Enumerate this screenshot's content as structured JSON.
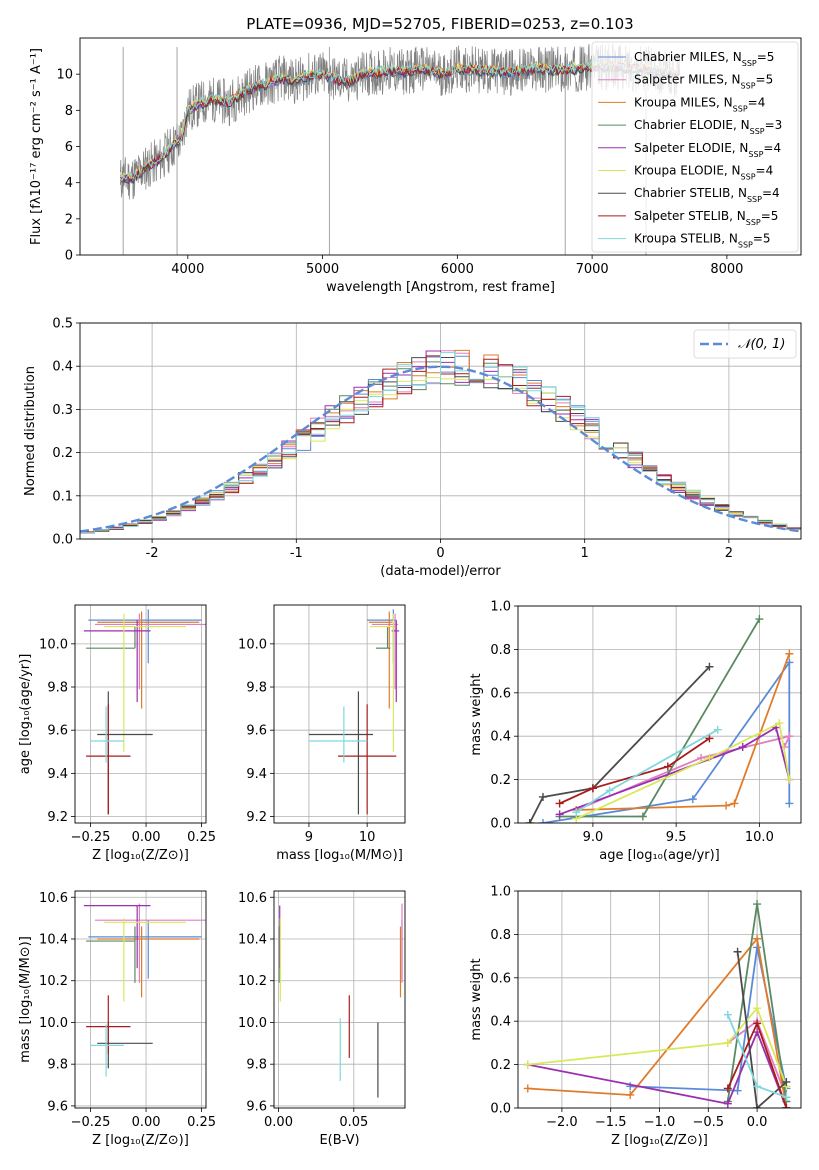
{
  "page": {
    "title": "PLATE=0936, MJD=52705, FIBERID=0253, z=0.103"
  },
  "colors": {
    "Chabrier MILES": "#5b8bd8",
    "Salpeter MILES": "#e07fc0",
    "Kroupa MILES": "#e07b2a",
    "Chabrier ELODIE": "#5a8a62",
    "Salpeter ELODIE": "#9b2fb0",
    "Kroupa ELODIE": "#d8e85a",
    "Chabrier STELIB": "#4a4a4a",
    "Salpeter STELIB": "#aa1c1c",
    "Kroupa STELIB": "#7fd8dc",
    "data": "#808080",
    "normal": "#5b8bd8"
  },
  "chart_data": [
    {
      "id": "spectrum",
      "type": "line",
      "title": "PLATE=0936, MJD=52705, FIBERID=0253, z=0.103",
      "xlabel": "wavelength [Angstrom, rest frame]",
      "ylabel": "Flux [fλ10⁻¹⁷ erg cm⁻² s⁻¹ A⁻¹]",
      "xlim": [
        3200,
        8550
      ],
      "ylim": [
        0,
        12
      ],
      "xticks": [
        4000,
        5000,
        6000,
        7000,
        8000
      ],
      "yticks": [
        0,
        2,
        4,
        6,
        8,
        10
      ],
      "legend_position": "upper right",
      "legend": [
        {
          "name": "Chabrier MILES, N_SSP=5",
          "color": "#5b8bd8"
        },
        {
          "name": "Salpeter MILES, N_SSP=5",
          "color": "#e07fc0"
        },
        {
          "name": "Kroupa MILES, N_SSP=4",
          "color": "#e07b2a"
        },
        {
          "name": "Chabrier ELODIE, N_SSP=3",
          "color": "#5a8a62"
        },
        {
          "name": "Salpeter ELODIE, N_SSP=4",
          "color": "#9b2fb0"
        },
        {
          "name": "Kroupa ELODIE, N_SSP=4",
          "color": "#d8e85a"
        },
        {
          "name": "Chabrier STELIB, N_SSP=4",
          "color": "#4a4a4a"
        },
        {
          "name": "Salpeter STELIB, N_SSP=5",
          "color": "#aa1c1c"
        },
        {
          "name": "Kroupa STELIB, N_SSP=5",
          "color": "#7fd8dc"
        }
      ],
      "continuum": [
        [
          3500,
          4.2
        ],
        [
          3600,
          4.3
        ],
        [
          3700,
          4.9
        ],
        [
          3800,
          5.3
        ],
        [
          3900,
          6.1
        ],
        [
          3950,
          6.4
        ],
        [
          4000,
          8.0
        ],
        [
          4100,
          8.4
        ],
        [
          4200,
          8.6
        ],
        [
          4300,
          8.4
        ],
        [
          4400,
          8.9
        ],
        [
          4500,
          9.3
        ],
        [
          4600,
          9.5
        ],
        [
          4700,
          9.8
        ],
        [
          4800,
          9.6
        ],
        [
          4900,
          9.9
        ],
        [
          5000,
          10.0
        ],
        [
          5100,
          9.7
        ],
        [
          5200,
          9.6
        ],
        [
          5300,
          10.0
        ],
        [
          5400,
          10.1
        ],
        [
          5500,
          10.2
        ],
        [
          5600,
          10.1
        ],
        [
          5700,
          10.3
        ],
        [
          5800,
          10.2
        ],
        [
          5900,
          10.0
        ],
        [
          6000,
          10.3
        ],
        [
          6200,
          10.2
        ],
        [
          6400,
          10.1
        ],
        [
          6600,
          10.3
        ],
        [
          6800,
          10.2
        ],
        [
          7000,
          10.4
        ],
        [
          7200,
          10.4
        ],
        [
          7400,
          10.3
        ],
        [
          7600,
          10.0
        ]
      ],
      "data_extent": [
        3500,
        7650
      ],
      "bad_pixel_spikes": [
        3520,
        3920,
        5050,
        6800,
        7400
      ]
    },
    {
      "id": "residuals",
      "type": "step",
      "xlabel": "(data-model)/error",
      "ylabel": "Normed distribution",
      "xlim": [
        -2.5,
        2.5
      ],
      "ylim": [
        0,
        0.5
      ],
      "xticks": [
        -2,
        -1,
        0,
        1,
        2
      ],
      "yticks": [
        0.0,
        0.1,
        0.2,
        0.3,
        0.4,
        0.5
      ],
      "legend": [
        {
          "name": "𝒩(0, 1)",
          "color": "#5b8bd8",
          "style": "dashed"
        }
      ],
      "bin_width": 0.1
    },
    {
      "id": "age-vs-Z",
      "type": "errorbar",
      "xlabel": "Z [log₁₀(Z/Z⊙)]",
      "ylabel": "age  [log₁₀(age/yr)]",
      "xlim": [
        -0.32,
        0.27
      ],
      "ylim": [
        9.17,
        10.18
      ],
      "xticks": [
        -0.25,
        0.0,
        0.25
      ],
      "yticks": [
        9.2,
        9.4,
        9.6,
        9.8,
        10.0
      ],
      "points": [
        {
          "model": "Chabrier MILES",
          "x": 0.01,
          "y": 10.11,
          "xerr": [
            0.27,
            0.24
          ],
          "yerr": [
            0.2,
            0.05
          ]
        },
        {
          "model": "Salpeter MILES",
          "x": -0.03,
          "y": 10.09,
          "xerr": [
            0.2,
            0.3
          ],
          "yerr": [
            0.3,
            0.05
          ]
        },
        {
          "model": "Kroupa MILES",
          "x": -0.02,
          "y": 10.1,
          "xerr": [
            0.2,
            0.26
          ],
          "yerr": [
            0.4,
            0.05
          ]
        },
        {
          "model": "Chabrier ELODIE",
          "x": -0.05,
          "y": 9.98,
          "xerr": [
            0.22,
            0.0
          ],
          "yerr": [
            0.0,
            0.1
          ]
        },
        {
          "model": "Salpeter ELODIE",
          "x": -0.04,
          "y": 10.06,
          "xerr": [
            0.24,
            0.06
          ],
          "yerr": [
            0.33,
            0.05
          ]
        },
        {
          "model": "Kroupa ELODIE",
          "x": -0.1,
          "y": 10.08,
          "xerr": [
            0.09,
            0.28
          ],
          "yerr": [
            0.58,
            0.06
          ]
        },
        {
          "model": "Chabrier STELIB",
          "x": -0.17,
          "y": 9.58,
          "xerr": [
            0.05,
            0.2
          ],
          "yerr": [
            0.37,
            0.2
          ]
        },
        {
          "model": "Salpeter STELIB",
          "x": -0.17,
          "y": 9.48,
          "xerr": [
            0.1,
            0.1
          ],
          "yerr": [
            0.27,
            0.24
          ]
        },
        {
          "model": "Kroupa STELIB",
          "x": -0.18,
          "y": 9.55,
          "xerr": [
            0.07,
            0.08
          ],
          "yerr": [
            0.1,
            0.16
          ]
        }
      ]
    },
    {
      "id": "age-vs-mass",
      "type": "errorbar",
      "xlabel": "mass [log₁₀(M/M⊙)]",
      "ylabel": "",
      "xlim": [
        8.4,
        10.65
      ],
      "ylim": [
        9.17,
        10.18
      ],
      "xticks": [
        9,
        10
      ],
      "yticks": [
        9.2,
        9.4,
        9.6,
        9.8,
        10.0
      ],
      "points": [
        {
          "model": "Chabrier MILES",
          "x": 10.45,
          "y": 10.11,
          "xerr": [
            0.45,
            0.05
          ],
          "yerr": [
            0.2,
            0.05
          ]
        },
        {
          "model": "Salpeter MILES",
          "x": 10.48,
          "y": 10.09,
          "xerr": [
            0.4,
            0.05
          ],
          "yerr": [
            0.3,
            0.05
          ]
        },
        {
          "model": "Kroupa MILES",
          "x": 10.38,
          "y": 10.1,
          "xerr": [
            0.35,
            0.05
          ],
          "yerr": [
            0.4,
            0.05
          ]
        },
        {
          "model": "Chabrier ELODIE",
          "x": 10.35,
          "y": 9.98,
          "xerr": [
            0.2,
            0.05
          ],
          "yerr": [
            0.0,
            0.1
          ]
        },
        {
          "model": "Salpeter ELODIE",
          "x": 10.5,
          "y": 10.06,
          "xerr": [
            0.08,
            0.05
          ],
          "yerr": [
            0.33,
            0.05
          ]
        },
        {
          "model": "Kroupa ELODIE",
          "x": 10.45,
          "y": 10.08,
          "xerr": [
            0.4,
            0.02
          ],
          "yerr": [
            0.58,
            0.06
          ]
        },
        {
          "model": "Chabrier STELIB",
          "x": 9.85,
          "y": 9.58,
          "xerr": [
            0.85,
            0.25
          ],
          "yerr": [
            0.37,
            0.2
          ]
        },
        {
          "model": "Salpeter STELIB",
          "x": 10.0,
          "y": 9.48,
          "xerr": [
            0.5,
            0.5
          ],
          "yerr": [
            0.27,
            0.24
          ]
        },
        {
          "model": "Kroupa STELIB",
          "x": 9.6,
          "y": 9.55,
          "xerr": [
            0.6,
            0.4
          ],
          "yerr": [
            0.1,
            0.16
          ]
        }
      ]
    },
    {
      "id": "weight-vs-age",
      "type": "line",
      "xlabel": "age  [log₁₀(age/yr)]",
      "ylabel": "mass weight",
      "xlim": [
        8.55,
        10.25
      ],
      "ylim": [
        0,
        1
      ],
      "xticks": [
        9.0,
        9.5,
        10.0
      ],
      "yticks": [
        0.0,
        0.2,
        0.4,
        0.6,
        0.8,
        1.0
      ],
      "series": [
        {
          "model": "Chabrier MILES",
          "x": [
            8.7,
            9.6,
            10.18,
            10.18
          ],
          "y": [
            0.0,
            0.11,
            0.74,
            0.09
          ]
        },
        {
          "model": "Salpeter MILES",
          "x": [
            8.9,
            9.65,
            10.18,
            10.15
          ],
          "y": [
            0.06,
            0.3,
            0.4,
            0.35
          ]
        },
        {
          "model": "Kroupa MILES",
          "x": [
            8.9,
            9.8,
            9.85,
            10.18
          ],
          "y": [
            0.06,
            0.08,
            0.09,
            0.78
          ]
        },
        {
          "model": "Chabrier ELODIE",
          "x": [
            8.8,
            9.3,
            10.0
          ],
          "y": [
            0.03,
            0.03,
            0.94
          ]
        },
        {
          "model": "Salpeter ELODIE",
          "x": [
            8.8,
            9.9,
            10.1,
            10.18
          ],
          "y": [
            0.04,
            0.35,
            0.44,
            0.2
          ]
        },
        {
          "model": "Kroupa ELODIE",
          "x": [
            8.9,
            9.7,
            10.12,
            10.18
          ],
          "y": [
            0.02,
            0.3,
            0.46,
            0.2
          ]
        },
        {
          "model": "Chabrier STELIB",
          "x": [
            8.62,
            8.7,
            9.0,
            9.7
          ],
          "y": [
            0.0,
            0.12,
            0.16,
            0.72
          ]
        },
        {
          "model": "Salpeter STELIB",
          "x": [
            8.8,
            9.0,
            9.45,
            9.7
          ],
          "y": [
            0.09,
            0.16,
            0.26,
            0.39
          ]
        },
        {
          "model": "Kroupa STELIB",
          "x": [
            8.9,
            9.1,
            9.75
          ],
          "y": [
            0.05,
            0.15,
            0.43
          ]
        }
      ]
    },
    {
      "id": "mass-vs-Z",
      "type": "errorbar",
      "xlabel": "Z [log₁₀(Z/Z⊙)]",
      "ylabel": "mass [log₁₀(M/M⊙)]",
      "xlim": [
        -0.32,
        0.27
      ],
      "ylim": [
        9.59,
        10.63
      ],
      "xticks": [
        -0.25,
        0.0,
        0.25
      ],
      "yticks": [
        9.6,
        9.8,
        10.0,
        10.2,
        10.4,
        10.6
      ],
      "points": [
        {
          "model": "Chabrier MILES",
          "x": 0.01,
          "y": 10.41,
          "xerr": [
            0.27,
            0.24
          ],
          "yerr": [
            0.2,
            0.08
          ]
        },
        {
          "model": "Salpeter MILES",
          "x": -0.03,
          "y": 10.49,
          "xerr": [
            0.2,
            0.3
          ],
          "yerr": [
            0.3,
            0.08
          ]
        },
        {
          "model": "Kroupa MILES",
          "x": -0.02,
          "y": 10.4,
          "xerr": [
            0.2,
            0.26
          ],
          "yerr": [
            0.28,
            0.06
          ]
        },
        {
          "model": "Chabrier ELODIE",
          "x": -0.05,
          "y": 10.39,
          "xerr": [
            0.22,
            0.0
          ],
          "yerr": [
            0.2,
            0.07
          ]
        },
        {
          "model": "Salpeter ELODIE",
          "x": -0.04,
          "y": 10.56,
          "xerr": [
            0.24,
            0.06
          ],
          "yerr": [
            0.3,
            0.0
          ]
        },
        {
          "model": "Kroupa ELODIE",
          "x": -0.1,
          "y": 10.48,
          "xerr": [
            0.09,
            0.28
          ],
          "yerr": [
            0.38,
            0.02
          ]
        },
        {
          "model": "Chabrier STELIB",
          "x": -0.17,
          "y": 9.9,
          "xerr": [
            0.05,
            0.2
          ],
          "yerr": [
            0.12,
            0.1
          ]
        },
        {
          "model": "Salpeter STELIB",
          "x": -0.17,
          "y": 9.98,
          "xerr": [
            0.1,
            0.1
          ],
          "yerr": [
            0.13,
            0.15
          ]
        },
        {
          "model": "Kroupa STELIB",
          "x": -0.18,
          "y": 9.89,
          "xerr": [
            0.07,
            0.08
          ],
          "yerr": [
            0.15,
            0.1
          ]
        }
      ]
    },
    {
      "id": "mass-vs-EBV",
      "type": "errorbar",
      "xlabel": "E(B-V)",
      "ylabel": "",
      "xlim": [
        -0.003,
        0.084
      ],
      "ylim": [
        9.59,
        10.63
      ],
      "xticks": [
        0.0,
        0.05
      ],
      "yticks": [
        9.6,
        9.8,
        10.0,
        10.2,
        10.4,
        10.6
      ],
      "points": [
        {
          "model": "Chabrier MILES",
          "x": 0.082,
          "y": 10.41,
          "xerr": [
            0,
            0
          ],
          "yerr": [
            0.2,
            0.08
          ]
        },
        {
          "model": "Salpeter MILES",
          "x": 0.082,
          "y": 10.49,
          "xerr": [
            0,
            0
          ],
          "yerr": [
            0.3,
            0.08
          ]
        },
        {
          "model": "Kroupa MILES",
          "x": 0.081,
          "y": 10.4,
          "xerr": [
            0,
            0
          ],
          "yerr": [
            0.28,
            0.06
          ]
        },
        {
          "model": "Chabrier ELODIE",
          "x": 0.0005,
          "y": 10.39,
          "xerr": [
            0,
            0
          ],
          "yerr": [
            0.2,
            0.07
          ]
        },
        {
          "model": "Salpeter ELODIE",
          "x": 0.0008,
          "y": 10.56,
          "xerr": [
            0,
            0
          ],
          "yerr": [
            0.3,
            0.0
          ]
        },
        {
          "model": "Kroupa ELODIE",
          "x": 0.0012,
          "y": 10.48,
          "xerr": [
            0,
            0
          ],
          "yerr": [
            0.38,
            0.02
          ]
        },
        {
          "model": "Chabrier STELIB",
          "x": 0.066,
          "y": 9.9,
          "xerr": [
            0,
            0
          ],
          "yerr": [
            0.26,
            0.1
          ]
        },
        {
          "model": "Salpeter STELIB",
          "x": 0.047,
          "y": 9.98,
          "xerr": [
            0,
            0
          ],
          "yerr": [
            0.15,
            0.15
          ]
        },
        {
          "model": "Kroupa STELIB",
          "x": 0.041,
          "y": 9.89,
          "xerr": [
            0,
            0
          ],
          "yerr": [
            0.17,
            0.13
          ]
        }
      ]
    },
    {
      "id": "weight-vs-Z",
      "type": "line",
      "xlabel": "Z [log₁₀(Z/Z⊙)]",
      "ylabel": "mass weight",
      "xlim": [
        -2.45,
        0.45
      ],
      "ylim": [
        0,
        1
      ],
      "xticks": [
        -2.0,
        -1.5,
        -1.0,
        -0.5,
        0.0
      ],
      "yticks": [
        0.0,
        0.2,
        0.4,
        0.6,
        0.8,
        1.0
      ],
      "series": [
        {
          "model": "Chabrier MILES",
          "x": [
            -1.3,
            -0.2,
            0.0,
            0.3
          ],
          "y": [
            0.1,
            0.08,
            0.74,
            0.09
          ]
        },
        {
          "model": "Salpeter MILES",
          "x": [
            -0.3,
            0.0,
            0.3
          ],
          "y": [
            0.3,
            0.4,
            0.05
          ]
        },
        {
          "model": "Kroupa MILES",
          "x": [
            -2.35,
            -1.3,
            0.0,
            0.3
          ],
          "y": [
            0.09,
            0.06,
            0.78,
            0.0
          ]
        },
        {
          "model": "Chabrier ELODIE",
          "x": [
            -0.3,
            0.0,
            0.3
          ],
          "y": [
            0.03,
            0.94,
            0.03
          ]
        },
        {
          "model": "Salpeter ELODIE",
          "x": [
            -2.35,
            -0.3,
            0.0,
            0.3
          ],
          "y": [
            0.2,
            0.02,
            0.35,
            0.0
          ]
        },
        {
          "model": "Kroupa ELODIE",
          "x": [
            -2.35,
            -0.3,
            0.0,
            0.3
          ],
          "y": [
            0.2,
            0.3,
            0.46,
            0.1
          ]
        },
        {
          "model": "Chabrier STELIB",
          "x": [
            -0.2,
            0.0,
            0.3
          ],
          "y": [
            0.72,
            0.0,
            0.12
          ]
        },
        {
          "model": "Salpeter STELIB",
          "x": [
            -0.3,
            0.0,
            0.3
          ],
          "y": [
            0.09,
            0.39,
            0.0
          ]
        },
        {
          "model": "Kroupa STELIB",
          "x": [
            -0.3,
            0.0,
            0.3
          ],
          "y": [
            0.43,
            0.1,
            0.05
          ]
        }
      ]
    }
  ]
}
